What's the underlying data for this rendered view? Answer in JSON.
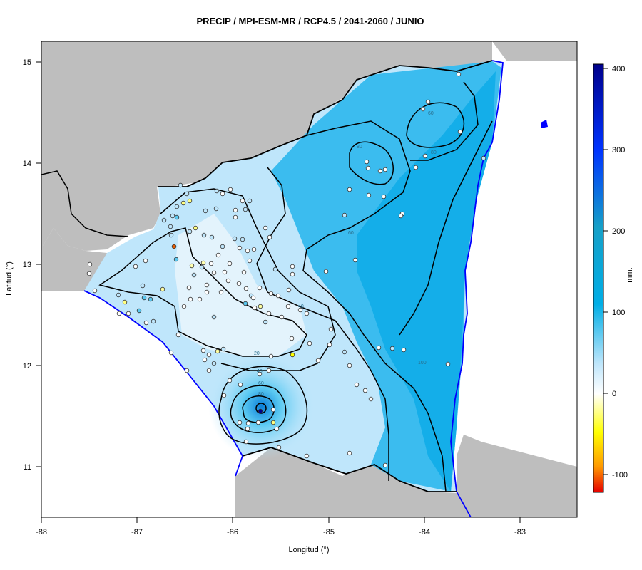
{
  "title": "PRECIP / MPI-ESM-MR / RCP4.5 / 2041-2060 / JUNIO",
  "xlabel": "Longitud (°)",
  "ylabel": "Latitud (°)",
  "colorbar": {
    "label": "mm.",
    "ticks": [
      "400",
      "300",
      "200",
      "100",
      "0",
      "-100"
    ],
    "range": [
      -120,
      405
    ],
    "colors": [
      "#e60000",
      "#ff9900",
      "#ffff00",
      "#ffffff",
      "#bfe6fb",
      "#33b5ea",
      "#00aee6",
      "#16a0c8",
      "#0022ff",
      "#00008b"
    ]
  },
  "x_ticks": [
    "-88",
    "-87",
    "-86",
    "-85",
    "-84",
    "-83"
  ],
  "y_ticks": [
    "11",
    "12",
    "13",
    "14",
    "15"
  ],
  "x_range": [
    -88,
    -82.4
  ],
  "y_range": [
    10.5,
    15.2
  ],
  "contour_labels": [
    "20",
    "40",
    "40",
    "60",
    "60",
    "80",
    "80",
    "60",
    "80",
    "100"
  ],
  "colors": {
    "land_neighbor": "#bebebe",
    "ocean": "#ffffff",
    "coast": "#0000ff",
    "border": "#000000",
    "low_precip": "#e6f4fc",
    "high_precip": "#00aee6"
  }
}
